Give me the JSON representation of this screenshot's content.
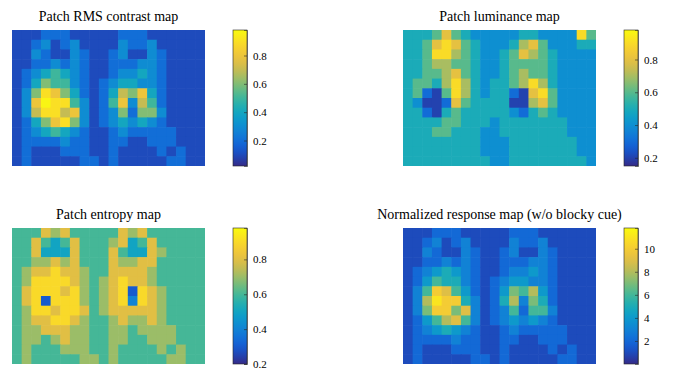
{
  "chart_data": [
    {
      "type": "heatmap",
      "title": "Patch RMS contrast map",
      "tick_labels": false,
      "colorbar_range": [
        0.02,
        0.98
      ],
      "colorbar_ticks": [
        0.2,
        0.4,
        0.6,
        0.8
      ],
      "values": [
        [
          0.1,
          0.1,
          0.1,
          0.2,
          0.2,
          0.2,
          0.1,
          0.1,
          0.1,
          0.1,
          0.1,
          0.2,
          0.2,
          0.2,
          0.1,
          0.1,
          0.1,
          0.1,
          0.1,
          0.1
        ],
        [
          0.1,
          0.1,
          0.2,
          0.3,
          0.1,
          0.2,
          0.3,
          0.1,
          0.1,
          0.1,
          0.1,
          0.3,
          0.2,
          0.2,
          0.3,
          0.1,
          0.1,
          0.1,
          0.1,
          0.1
        ],
        [
          0.1,
          0.1,
          0.3,
          0.2,
          0.1,
          0.1,
          0.3,
          0.2,
          0.1,
          0.1,
          0.2,
          0.3,
          0.1,
          0.1,
          0.3,
          0.2,
          0.1,
          0.1,
          0.1,
          0.1
        ],
        [
          0.1,
          0.1,
          0.2,
          0.2,
          0.3,
          0.2,
          0.3,
          0.2,
          0.1,
          0.1,
          0.2,
          0.2,
          0.2,
          0.3,
          0.3,
          0.2,
          0.1,
          0.1,
          0.1,
          0.1
        ],
        [
          0.1,
          0.2,
          0.3,
          0.4,
          0.5,
          0.4,
          0.3,
          0.2,
          0.1,
          0.1,
          0.2,
          0.3,
          0.3,
          0.4,
          0.3,
          0.2,
          0.1,
          0.1,
          0.1,
          0.1
        ],
        [
          0.1,
          0.2,
          0.4,
          0.6,
          0.5,
          0.5,
          0.3,
          0.2,
          0.1,
          0.2,
          0.3,
          0.4,
          0.4,
          0.3,
          0.3,
          0.2,
          0.1,
          0.1,
          0.1,
          0.1
        ],
        [
          0.1,
          0.3,
          0.6,
          0.9,
          0.8,
          0.6,
          0.4,
          0.2,
          0.1,
          0.2,
          0.4,
          0.7,
          0.6,
          0.8,
          0.4,
          0.2,
          0.1,
          0.1,
          0.1,
          0.1
        ],
        [
          0.1,
          0.3,
          0.8,
          0.96,
          0.9,
          0.9,
          0.5,
          0.3,
          0.1,
          0.2,
          0.5,
          0.8,
          0.3,
          0.7,
          0.5,
          0.2,
          0.1,
          0.1,
          0.1,
          0.1
        ],
        [
          0.1,
          0.3,
          0.7,
          0.9,
          0.9,
          0.7,
          0.8,
          0.3,
          0.1,
          0.2,
          0.3,
          0.6,
          0.2,
          0.6,
          0.6,
          0.3,
          0.1,
          0.1,
          0.1,
          0.1
        ],
        [
          0.1,
          0.2,
          0.4,
          0.6,
          0.8,
          0.9,
          0.6,
          0.3,
          0.1,
          0.2,
          0.3,
          0.4,
          0.3,
          0.4,
          0.3,
          0.2,
          0.1,
          0.1,
          0.1,
          0.1
        ],
        [
          0.1,
          0.2,
          0.3,
          0.4,
          0.5,
          0.4,
          0.3,
          0.2,
          0.1,
          0.1,
          0.2,
          0.3,
          0.2,
          0.2,
          0.2,
          0.2,
          0.2,
          0.1,
          0.1,
          0.1
        ],
        [
          0.1,
          0.2,
          0.2,
          0.2,
          0.2,
          0.3,
          0.2,
          0.2,
          0.1,
          0.1,
          0.2,
          0.2,
          0.1,
          0.1,
          0.2,
          0.2,
          0.2,
          0.1,
          0.1,
          0.1
        ],
        [
          0.1,
          0.2,
          0.1,
          0.1,
          0.1,
          0.2,
          0.2,
          0.2,
          0.1,
          0.1,
          0.2,
          0.1,
          0.1,
          0.1,
          0.1,
          0.2,
          0.1,
          0.2,
          0.1,
          0.1
        ],
        [
          0.1,
          0.2,
          0.1,
          0.1,
          0.1,
          0.1,
          0.1,
          0.2,
          0.2,
          0.1,
          0.2,
          0.1,
          0.1,
          0.1,
          0.1,
          0.1,
          0.2,
          0.2,
          0.1,
          0.1
        ]
      ]
    },
    {
      "type": "heatmap",
      "title": "Patch luminance map",
      "tick_labels": false,
      "colorbar_range": [
        0.15,
        0.98
      ],
      "colorbar_ticks": [
        0.2,
        0.4,
        0.6,
        0.8
      ],
      "values": [
        [
          0.5,
          0.5,
          0.5,
          0.6,
          0.8,
          0.6,
          0.5,
          0.4,
          0.4,
          0.4,
          0.4,
          0.4,
          0.5,
          0.5,
          0.4,
          0.4,
          0.4,
          0.4,
          0.9,
          0.6
        ],
        [
          0.5,
          0.5,
          0.6,
          0.8,
          0.9,
          0.8,
          0.6,
          0.5,
          0.4,
          0.4,
          0.4,
          0.5,
          0.7,
          0.8,
          0.6,
          0.4,
          0.4,
          0.4,
          0.5,
          0.5
        ],
        [
          0.5,
          0.5,
          0.6,
          0.9,
          0.9,
          0.7,
          0.6,
          0.5,
          0.4,
          0.4,
          0.5,
          0.6,
          0.8,
          0.7,
          0.6,
          0.5,
          0.4,
          0.4,
          0.4,
          0.4
        ],
        [
          0.5,
          0.5,
          0.6,
          0.7,
          0.7,
          0.6,
          0.6,
          0.5,
          0.4,
          0.4,
          0.5,
          0.6,
          0.6,
          0.6,
          0.6,
          0.5,
          0.4,
          0.4,
          0.4,
          0.4
        ],
        [
          0.5,
          0.5,
          0.6,
          0.6,
          0.7,
          0.8,
          0.6,
          0.5,
          0.4,
          0.4,
          0.5,
          0.6,
          0.7,
          0.6,
          0.6,
          0.5,
          0.4,
          0.4,
          0.4,
          0.4
        ],
        [
          0.5,
          0.6,
          0.6,
          0.5,
          0.7,
          0.9,
          0.7,
          0.5,
          0.4,
          0.5,
          0.5,
          0.6,
          0.7,
          0.9,
          0.7,
          0.5,
          0.4,
          0.4,
          0.4,
          0.4
        ],
        [
          0.5,
          0.6,
          0.3,
          0.2,
          0.6,
          0.9,
          0.7,
          0.5,
          0.4,
          0.5,
          0.5,
          0.3,
          0.2,
          0.8,
          0.9,
          0.6,
          0.4,
          0.4,
          0.4,
          0.4
        ],
        [
          0.5,
          0.4,
          0.2,
          0.2,
          0.3,
          0.8,
          0.6,
          0.5,
          0.5,
          0.5,
          0.5,
          0.2,
          0.2,
          0.7,
          0.8,
          0.6,
          0.4,
          0.4,
          0.4,
          0.4
        ],
        [
          0.5,
          0.5,
          0.3,
          0.2,
          0.5,
          0.6,
          0.5,
          0.5,
          0.5,
          0.5,
          0.5,
          0.4,
          0.3,
          0.5,
          0.6,
          0.5,
          0.4,
          0.4,
          0.4,
          0.4
        ],
        [
          0.5,
          0.5,
          0.5,
          0.5,
          0.6,
          0.6,
          0.5,
          0.5,
          0.5,
          0.4,
          0.5,
          0.5,
          0.5,
          0.5,
          0.5,
          0.5,
          0.5,
          0.4,
          0.4,
          0.4
        ],
        [
          0.5,
          0.5,
          0.5,
          0.6,
          0.6,
          0.5,
          0.5,
          0.5,
          0.4,
          0.4,
          0.5,
          0.5,
          0.5,
          0.5,
          0.5,
          0.5,
          0.5,
          0.4,
          0.4,
          0.4
        ],
        [
          0.5,
          0.5,
          0.5,
          0.5,
          0.5,
          0.5,
          0.5,
          0.5,
          0.4,
          0.4,
          0.4,
          0.5,
          0.5,
          0.5,
          0.5,
          0.5,
          0.5,
          0.5,
          0.4,
          0.4
        ],
        [
          0.5,
          0.5,
          0.5,
          0.5,
          0.5,
          0.5,
          0.5,
          0.5,
          0.4,
          0.4,
          0.4,
          0.5,
          0.5,
          0.5,
          0.5,
          0.5,
          0.5,
          0.5,
          0.4,
          0.4
        ],
        [
          0.5,
          0.5,
          0.5,
          0.5,
          0.5,
          0.5,
          0.5,
          0.5,
          0.5,
          0.4,
          0.4,
          0.5,
          0.5,
          0.5,
          0.5,
          0.5,
          0.5,
          0.5,
          0.5,
          0.4
        ]
      ]
    },
    {
      "type": "heatmap",
      "title": "Patch entropy map",
      "tick_labels": false,
      "colorbar_range": [
        0.2,
        0.98
      ],
      "colorbar_ticks": [
        0.2,
        0.4,
        0.6,
        0.8
      ],
      "values": [
        [
          0.6,
          0.6,
          0.6,
          0.8,
          0.7,
          0.8,
          0.6,
          0.6,
          0.6,
          0.6,
          0.6,
          0.8,
          0.7,
          0.8,
          0.6,
          0.6,
          0.6,
          0.6,
          0.6,
          0.6
        ],
        [
          0.6,
          0.6,
          0.8,
          0.6,
          0.5,
          0.6,
          0.8,
          0.6,
          0.6,
          0.6,
          0.7,
          0.8,
          0.5,
          0.6,
          0.8,
          0.6,
          0.6,
          0.6,
          0.6,
          0.6
        ],
        [
          0.6,
          0.6,
          0.8,
          0.5,
          0.5,
          0.5,
          0.8,
          0.6,
          0.6,
          0.6,
          0.8,
          0.6,
          0.5,
          0.5,
          0.8,
          0.7,
          0.6,
          0.6,
          0.6,
          0.6
        ],
        [
          0.6,
          0.6,
          0.7,
          0.7,
          0.8,
          0.7,
          0.8,
          0.6,
          0.6,
          0.6,
          0.8,
          0.7,
          0.7,
          0.8,
          0.8,
          0.6,
          0.6,
          0.6,
          0.6,
          0.6
        ],
        [
          0.6,
          0.7,
          0.8,
          0.8,
          0.9,
          0.8,
          0.8,
          0.7,
          0.6,
          0.6,
          0.8,
          0.8,
          0.8,
          0.8,
          0.7,
          0.6,
          0.6,
          0.6,
          0.6,
          0.6
        ],
        [
          0.6,
          0.7,
          0.9,
          0.9,
          0.9,
          0.9,
          0.8,
          0.7,
          0.6,
          0.7,
          0.8,
          0.9,
          0.8,
          0.8,
          0.7,
          0.6,
          0.6,
          0.6,
          0.6,
          0.6
        ],
        [
          0.6,
          0.8,
          0.9,
          0.9,
          0.9,
          0.8,
          0.9,
          0.7,
          0.6,
          0.7,
          0.8,
          0.9,
          0.3,
          0.9,
          0.8,
          0.7,
          0.6,
          0.6,
          0.6,
          0.6
        ],
        [
          0.6,
          0.8,
          0.9,
          0.3,
          0.9,
          0.9,
          0.9,
          0.7,
          0.6,
          0.7,
          0.8,
          0.9,
          0.4,
          0.9,
          0.8,
          0.7,
          0.6,
          0.6,
          0.6,
          0.6
        ],
        [
          0.6,
          0.7,
          0.9,
          0.9,
          0.8,
          0.9,
          0.9,
          0.8,
          0.6,
          0.7,
          0.8,
          0.8,
          0.8,
          0.8,
          0.8,
          0.7,
          0.6,
          0.6,
          0.6,
          0.6
        ],
        [
          0.6,
          0.7,
          0.8,
          0.8,
          0.9,
          0.9,
          0.8,
          0.7,
          0.6,
          0.6,
          0.7,
          0.8,
          0.7,
          0.7,
          0.8,
          0.7,
          0.6,
          0.6,
          0.6,
          0.6
        ],
        [
          0.6,
          0.7,
          0.7,
          0.8,
          0.8,
          0.8,
          0.7,
          0.7,
          0.6,
          0.6,
          0.7,
          0.7,
          0.6,
          0.7,
          0.7,
          0.7,
          0.7,
          0.6,
          0.6,
          0.6
        ],
        [
          0.6,
          0.7,
          0.7,
          0.6,
          0.7,
          0.8,
          0.7,
          0.7,
          0.6,
          0.6,
          0.7,
          0.7,
          0.6,
          0.6,
          0.7,
          0.7,
          0.7,
          0.6,
          0.6,
          0.6
        ],
        [
          0.6,
          0.7,
          0.6,
          0.6,
          0.6,
          0.7,
          0.7,
          0.7,
          0.6,
          0.6,
          0.7,
          0.6,
          0.6,
          0.6,
          0.6,
          0.7,
          0.6,
          0.7,
          0.6,
          0.6
        ],
        [
          0.6,
          0.7,
          0.6,
          0.6,
          0.6,
          0.6,
          0.6,
          0.7,
          0.7,
          0.6,
          0.7,
          0.6,
          0.6,
          0.6,
          0.6,
          0.6,
          0.7,
          0.7,
          0.6,
          0.6
        ]
      ]
    },
    {
      "type": "heatmap",
      "title": "Normalized response map (w/o blocky cue)",
      "tick_labels": false,
      "colorbar_range": [
        0,
        11.8
      ],
      "colorbar_ticks": [
        2,
        4,
        6,
        8,
        10
      ],
      "values": [
        [
          1,
          1,
          1,
          2,
          2,
          2,
          1,
          1,
          1,
          1,
          1,
          2,
          2,
          2,
          1,
          1,
          1,
          1,
          1,
          1
        ],
        [
          1,
          1,
          2,
          3,
          1,
          2,
          3,
          1,
          1,
          1,
          1,
          3,
          2,
          2,
          3,
          1,
          1,
          1,
          1,
          1
        ],
        [
          1,
          1,
          3,
          2,
          1,
          1,
          3,
          2,
          1,
          1,
          2,
          3,
          1,
          1,
          3,
          2,
          1,
          1,
          1,
          1
        ],
        [
          1,
          1,
          2,
          2,
          3,
          2,
          3,
          2,
          1,
          1,
          2,
          2,
          2,
          3,
          3,
          2,
          1,
          1,
          1,
          1
        ],
        [
          1,
          2,
          3,
          4,
          5,
          4,
          3,
          2,
          1,
          1,
          2,
          3,
          3,
          4,
          3,
          2,
          1,
          1,
          1,
          1
        ],
        [
          1,
          2,
          4,
          6,
          5,
          5,
          3,
          2,
          1,
          2,
          3,
          4,
          4,
          3,
          3,
          2,
          1,
          1,
          1,
          1
        ],
        [
          1,
          3,
          6,
          10,
          9,
          6,
          4,
          2,
          1,
          2,
          4,
          7,
          6,
          8,
          4,
          2,
          1,
          1,
          1,
          1
        ],
        [
          1,
          3,
          8,
          11,
          10,
          10,
          5,
          3,
          1,
          2,
          5,
          8,
          3,
          7,
          5,
          2,
          1,
          1,
          1,
          1
        ],
        [
          1,
          3,
          7,
          10,
          10,
          7,
          9,
          3,
          1,
          2,
          3,
          6,
          2,
          6,
          6,
          3,
          1,
          1,
          1,
          1
        ],
        [
          1,
          2,
          4,
          6,
          8,
          9,
          6,
          3,
          1,
          2,
          3,
          4,
          3,
          4,
          3,
          2,
          1,
          1,
          1,
          1
        ],
        [
          1,
          2,
          3,
          4,
          5,
          4,
          3,
          2,
          1,
          1,
          2,
          3,
          2,
          2,
          2,
          2,
          2,
          1,
          1,
          1
        ],
        [
          1,
          2,
          2,
          2,
          2,
          3,
          2,
          2,
          1,
          1,
          2,
          2,
          1,
          1,
          2,
          2,
          2,
          1,
          1,
          1
        ],
        [
          1,
          2,
          1,
          1,
          1,
          2,
          2,
          2,
          1,
          1,
          2,
          1,
          1,
          1,
          1,
          2,
          1,
          2,
          1,
          1
        ],
        [
          1,
          2,
          1,
          1,
          1,
          1,
          1,
          2,
          2,
          1,
          2,
          1,
          1,
          1,
          1,
          1,
          2,
          2,
          1,
          1
        ]
      ]
    }
  ]
}
